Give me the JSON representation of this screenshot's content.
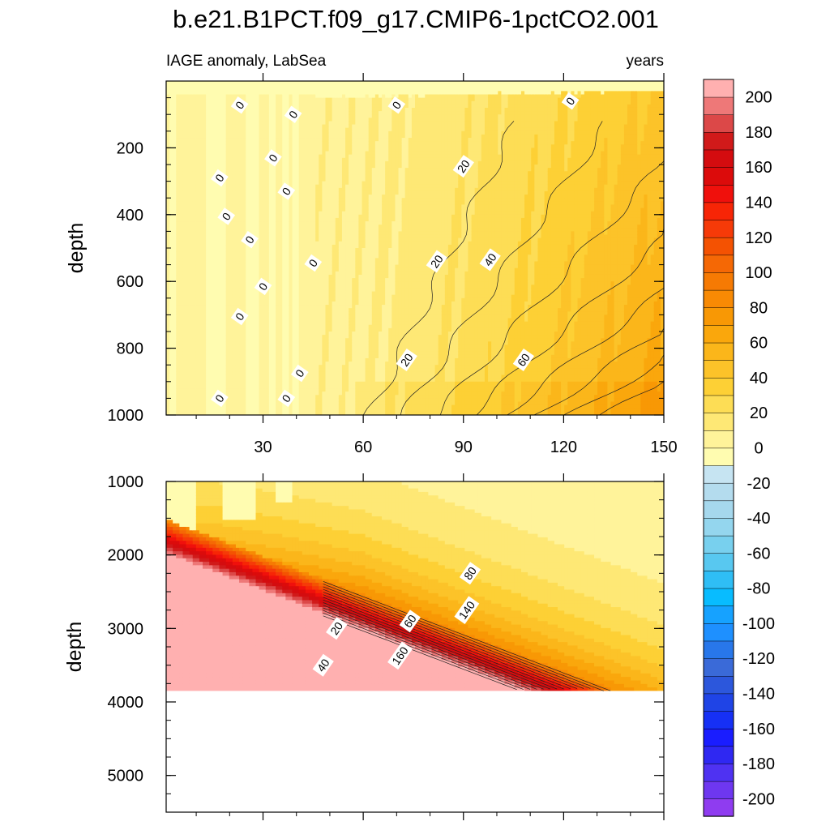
{
  "chart_data": {
    "type": "heatmap",
    "title": "b.e21.B1PCT.f09_g17.CMIP6-1pctCO2.001",
    "subtitle_left": "IAGE anomaly, LabSea",
    "subtitle_right": "years",
    "panels": [
      {
        "name": "upper",
        "ylabel": "depth",
        "xlim": [
          1,
          150
        ],
        "ylim": [
          0,
          1000
        ],
        "y_inverted": true,
        "xticks": [
          30,
          60,
          90,
          120,
          150
        ],
        "xtick_labels": [
          "30",
          "60",
          "90",
          "120",
          "150"
        ],
        "yticks": [
          200,
          400,
          600,
          800,
          1000
        ],
        "ytick_labels": [
          "200",
          "400",
          "600",
          "800",
          "1000"
        ],
        "contour_labels": [
          {
            "text": "0",
            "x": 23,
            "y": 72
          },
          {
            "text": "0",
            "x": 70,
            "y": 72
          },
          {
            "text": "0",
            "x": 122,
            "y": 60
          },
          {
            "text": "0",
            "x": 39,
            "y": 100
          },
          {
            "text": "0",
            "x": 17,
            "y": 290
          },
          {
            "text": "0",
            "x": 33,
            "y": 230
          },
          {
            "text": "0",
            "x": 37,
            "y": 330
          },
          {
            "text": "0",
            "x": 19,
            "y": 405
          },
          {
            "text": "0",
            "x": 26,
            "y": 475
          },
          {
            "text": "0",
            "x": 45,
            "y": 545
          },
          {
            "text": "0",
            "x": 30,
            "y": 615
          },
          {
            "text": "0",
            "x": 23,
            "y": 705
          },
          {
            "text": "0",
            "x": 41,
            "y": 875
          },
          {
            "text": "0",
            "x": 17,
            "y": 950
          },
          {
            "text": "0",
            "x": 37,
            "y": 950
          },
          {
            "text": "20",
            "x": 90,
            "y": 255
          },
          {
            "text": "20",
            "x": 82,
            "y": 540
          },
          {
            "text": "20",
            "x": 73,
            "y": 835
          },
          {
            "text": "40",
            "x": 98,
            "y": 535
          },
          {
            "text": "60",
            "x": 108,
            "y": 835
          }
        ]
      },
      {
        "name": "lower",
        "ylabel": "depth",
        "xlim": [
          1,
          150
        ],
        "ylim": [
          1000,
          5500
        ],
        "y_inverted": true,
        "xticks": [
          30,
          60,
          90,
          120,
          150
        ],
        "yticks": [
          1000,
          2000,
          3000,
          4000,
          5000
        ],
        "ytick_labels": [
          "1000",
          "2000",
          "3000",
          "4000",
          "5000"
        ],
        "bottom_depth": 3850,
        "contour_labels": [
          {
            "text": "20",
            "x": 52,
            "y": 3000
          },
          {
            "text": "40",
            "x": 48,
            "y": 3500
          },
          {
            "text": "60",
            "x": 74,
            "y": 2900
          },
          {
            "text": "80",
            "x": 92,
            "y": 2250
          },
          {
            "text": "140",
            "x": 91,
            "y": 2750
          },
          {
            "text": "160",
            "x": 71,
            "y": 3370
          }
        ]
      }
    ],
    "colorbar": {
      "levels": [
        -200,
        -190,
        -180,
        -170,
        -160,
        -150,
        -140,
        -130,
        -120,
        -110,
        -100,
        -90,
        -80,
        -70,
        -60,
        -50,
        -40,
        -30,
        -20,
        -10,
        0,
        10,
        20,
        30,
        40,
        50,
        60,
        70,
        80,
        90,
        100,
        110,
        120,
        130,
        140,
        150,
        160,
        170,
        180,
        190,
        200
      ],
      "tick_labels": [
        "-200",
        "-180",
        "-160",
        "-140",
        "-120",
        "-100",
        "-80",
        "-60",
        "-40",
        "-20",
        "0",
        "20",
        "40",
        "60",
        "80",
        "100",
        "120",
        "140",
        "160",
        "180",
        "200"
      ],
      "colors": [
        "#8f3cf0",
        "#6e37f0",
        "#4f32f2",
        "#2f28f2",
        "#1a1dff",
        "#1630f5",
        "#1f44e6",
        "#2c57dc",
        "#3a6ad8",
        "#2877ea",
        "#1e90ff",
        "#16a2ff",
        "#08bcff",
        "#2fbef5",
        "#58c8f0",
        "#78d0ee",
        "#94d6ee",
        "#a6d8ed",
        "#b4dcee",
        "#c6e4f2",
        "#fffcb0",
        "#fff39a",
        "#fee875",
        "#fddd55",
        "#fdd035",
        "#fcc329",
        "#fbb61a",
        "#faa70c",
        "#f89805",
        "#f88a04",
        "#f67a03",
        "#f56805",
        "#f45202",
        "#f63a08",
        "#f72506",
        "#f0100c",
        "#dc0b0b",
        "#d40c0f",
        "#d11a1a",
        "#dc4848",
        "#ee7878",
        "#ffb0b0"
      ]
    }
  }
}
